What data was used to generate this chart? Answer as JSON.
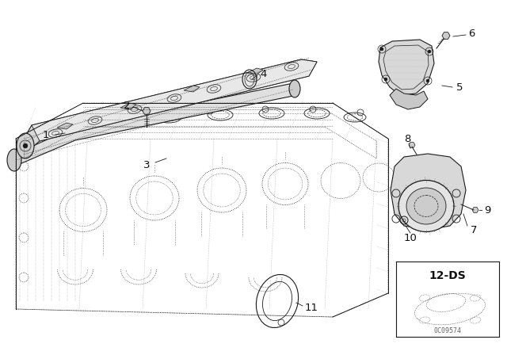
{
  "background_color": "#ffffff",
  "line_color": "#1a1a1a",
  "text_color": "#111111",
  "label_fontsize": 9.5,
  "watermark": "0C09574",
  "fig_width": 6.4,
  "fig_height": 4.48,
  "dpi": 100,
  "parts": {
    "rail_label": "1",
    "bolt_label": "2",
    "tube_label": "3",
    "seal_label": "4",
    "bracket_label": "5",
    "bolt6_label": "6",
    "cover7_label": "7",
    "bolt8_label": "8",
    "bolt9_label": "9",
    "washer10_label": "10",
    "gasket11_label": "11",
    "ds_label": "12-DS"
  }
}
